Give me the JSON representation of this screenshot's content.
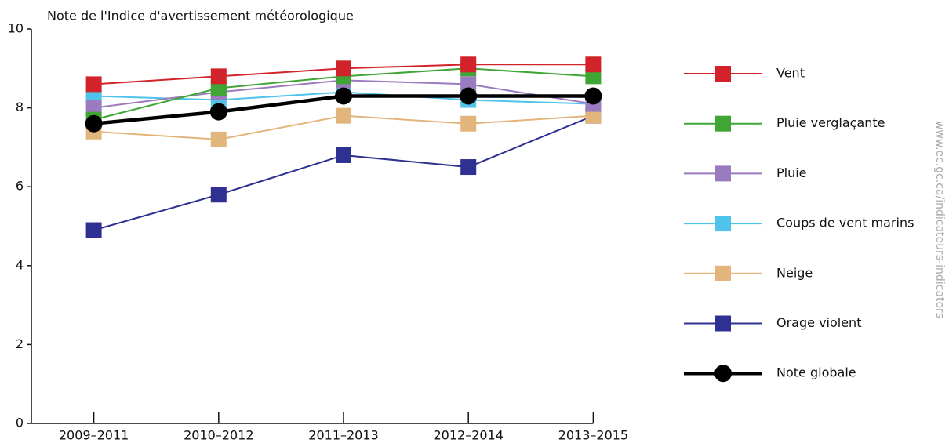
{
  "chart_data": {
    "type": "line",
    "title": "Note de l'Indice d'avertissement météorologique",
    "watermark": "www.ec.gc.ca/indicateurs-indicators",
    "categories": [
      "2009–2011",
      "2010–2012",
      "2011–2013",
      "2012–2014",
      "2013–2015"
    ],
    "ylim": [
      0,
      10
    ],
    "yticks": [
      0,
      2,
      4,
      6,
      8,
      10
    ],
    "grid": false,
    "legend": "right",
    "series": [
      {
        "name": "Vent",
        "color": "#d2232a",
        "marker": "square",
        "values": [
          8.6,
          8.8,
          9.0,
          9.1,
          9.1
        ]
      },
      {
        "name": "Pluie verglaçante",
        "color": "#3fa535",
        "marker": "square",
        "values": [
          7.7,
          8.5,
          8.8,
          9.0,
          8.8
        ]
      },
      {
        "name": "Pluie",
        "color": "#9b7bbf",
        "marker": "square",
        "values": [
          8.0,
          8.4,
          8.7,
          8.6,
          8.1
        ]
      },
      {
        "name": "Coups de vent marins",
        "color": "#4fc3ea",
        "marker": "square",
        "values": [
          8.3,
          8.2,
          8.4,
          8.2,
          8.1
        ]
      },
      {
        "name": "Neige",
        "color": "#e2b57d",
        "marker": "square",
        "values": [
          7.4,
          7.2,
          7.8,
          7.6,
          7.8
        ]
      },
      {
        "name": "Orage violent",
        "color": "#2e3192",
        "marker": "square",
        "values": [
          4.9,
          5.8,
          6.8,
          6.5,
          7.8
        ]
      },
      {
        "name": "Note globale",
        "color": "#000000",
        "marker": "circle",
        "values": [
          7.6,
          7.9,
          8.3,
          8.3,
          8.3
        ]
      }
    ]
  }
}
